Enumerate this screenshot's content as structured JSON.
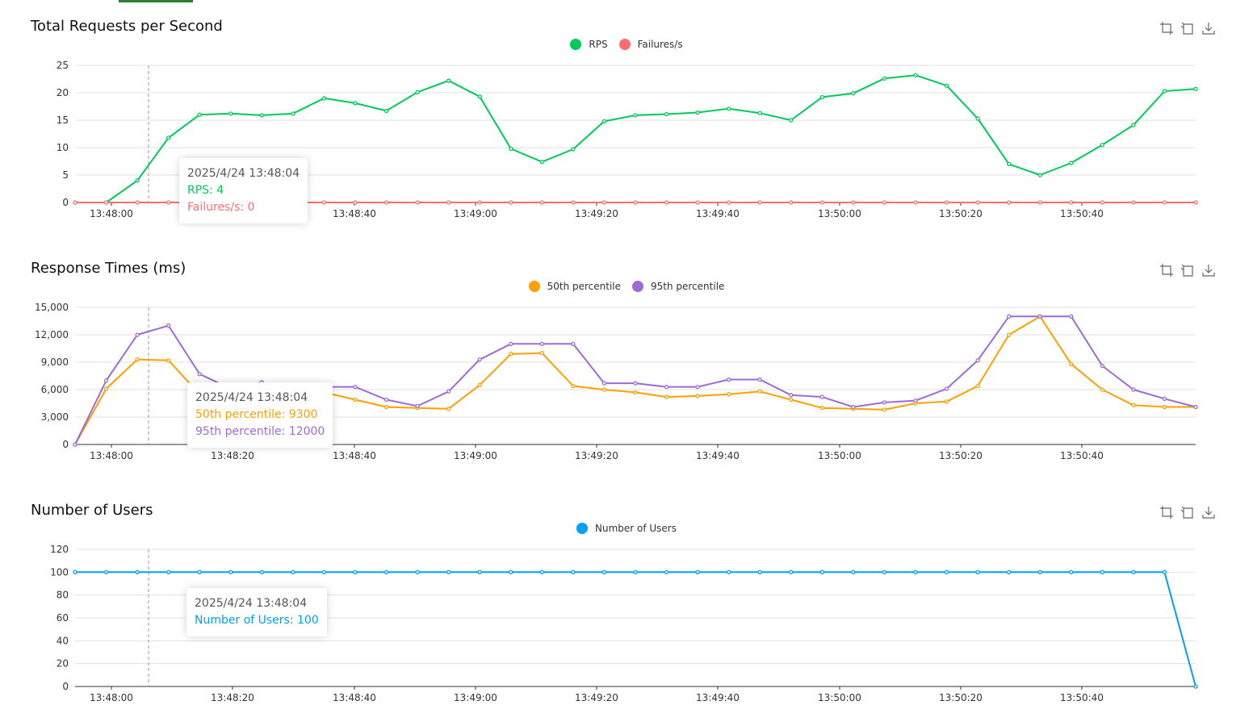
{
  "charts": [
    {
      "title": "Total Requests per Second",
      "ylim": [
        0,
        25
      ],
      "yticks": [
        "0",
        "5",
        "10",
        "15",
        "20",
        "25"
      ],
      "series": [
        {
          "name": "RPS",
          "color": "#00ca5a",
          "values": [
            0,
            0,
            4,
            11.8,
            16,
            16.2,
            15.9,
            16.2,
            19,
            18.1,
            16.7,
            20.1,
            22.2,
            19.3,
            9.8,
            7.4,
            9.7,
            14.8,
            15.9,
            16.1,
            16.4,
            17.1,
            16.3,
            15,
            19.2,
            19.9,
            22.6,
            23.2,
            21.3,
            15.3,
            7,
            5,
            7.2,
            10.5,
            14.1,
            20.3,
            20.7
          ]
        },
        {
          "name": "Failures/s",
          "color": "#ff6d6d",
          "values": [
            0,
            0,
            0,
            0,
            0,
            0,
            0,
            0,
            0,
            0,
            0,
            0,
            0,
            0,
            0,
            0,
            0,
            0,
            0,
            0,
            0,
            0,
            0,
            0,
            0,
            0,
            0,
            0,
            0,
            0,
            0,
            0,
            0,
            0,
            0,
            0,
            0
          ]
        }
      ],
      "tooltip": {
        "time": "2025/4/24 13:48:04",
        "lines": [
          "RPS: 4",
          "Failures/s: 0"
        ]
      }
    },
    {
      "title": "Response Times (ms)",
      "ylim": [
        0,
        15000
      ],
      "yticks": [
        "0",
        "3,000",
        "6,000",
        "9,000",
        "12,000",
        "15,000"
      ],
      "series": [
        {
          "name": "50th percentile",
          "color": "#ff9f00",
          "values": [
            0,
            6100,
            9300,
            9200,
            5500,
            5200,
            5400,
            4300,
            5700,
            4900,
            4100,
            4000,
            3900,
            6500,
            9900,
            10000,
            6400,
            6000,
            5700,
            5200,
            5300,
            5500,
            5800,
            4900,
            4000,
            3900,
            3800,
            4500,
            4700,
            6400,
            12000,
            14000,
            8800,
            6000,
            4300,
            4100,
            4100
          ]
        },
        {
          "name": "95th percentile",
          "color": "#9e6ad8",
          "values": [
            0,
            7000,
            12000,
            13000,
            7700,
            6100,
            6800,
            5400,
            6300,
            6300,
            4900,
            4200,
            5800,
            9300,
            11000,
            11000,
            11000,
            6700,
            6700,
            6300,
            6300,
            7100,
            7100,
            5400,
            5200,
            4100,
            4600,
            4800,
            6100,
            9200,
            14000,
            14000,
            14000,
            8600,
            6000,
            5000,
            4100
          ]
        }
      ],
      "tooltip": {
        "time": "2025/4/24 13:48:04",
        "lines": [
          "50th percentile: 9300",
          "95th percentile: 12000"
        ]
      }
    },
    {
      "title": "Number of Users",
      "ylim": [
        0,
        120
      ],
      "yticks": [
        "0",
        "20",
        "40",
        "60",
        "80",
        "100",
        "120"
      ],
      "series": [
        {
          "name": "Number of Users",
          "color": "#00a0f5",
          "values": [
            100,
            100,
            100,
            100,
            100,
            100,
            100,
            100,
            100,
            100,
            100,
            100,
            100,
            100,
            100,
            100,
            100,
            100,
            100,
            100,
            100,
            100,
            100,
            100,
            100,
            100,
            100,
            100,
            100,
            100,
            100,
            100,
            100,
            100,
            100,
            100,
            0
          ]
        }
      ],
      "tooltip": {
        "time": "2025/4/24 13:48:04",
        "lines": [
          "Number of Users: 100"
        ]
      }
    }
  ],
  "xtick_labels": [
    "13:48:00",
    "13:48:20",
    "13:48:40",
    "13:49:00",
    "13:49:20",
    "13:49:40",
    "13:50:00",
    "13:50:20",
    "13:50:40"
  ],
  "chart_data": [
    {
      "type": "line",
      "title": "Total Requests per Second",
      "x_tick_labels": [
        "13:48:00",
        "13:48:20",
        "13:48:40",
        "13:49:00",
        "13:49:20",
        "13:49:40",
        "13:50:00",
        "13:50:20",
        "13:50:40"
      ],
      "ylim": [
        0,
        25
      ],
      "grid": true,
      "legend": "top-center",
      "series": [
        {
          "name": "RPS",
          "values": [
            0,
            0,
            4,
            11.8,
            16,
            16.2,
            15.9,
            16.2,
            19,
            18.1,
            16.7,
            20.1,
            22.2,
            19.3,
            9.8,
            7.4,
            9.7,
            14.8,
            15.9,
            16.1,
            16.4,
            17.1,
            16.3,
            15,
            19.2,
            19.9,
            22.6,
            23.2,
            21.3,
            15.3,
            7,
            5,
            7.2,
            10.5,
            14.1,
            20.3,
            20.7
          ]
        },
        {
          "name": "Failures/s",
          "values": [
            0,
            0,
            0,
            0,
            0,
            0,
            0,
            0,
            0,
            0,
            0,
            0,
            0,
            0,
            0,
            0,
            0,
            0,
            0,
            0,
            0,
            0,
            0,
            0,
            0,
            0,
            0,
            0,
            0,
            0,
            0,
            0,
            0,
            0,
            0,
            0,
            0
          ]
        }
      ]
    },
    {
      "type": "line",
      "title": "Response Times (ms)",
      "x_tick_labels": [
        "13:48:00",
        "13:48:20",
        "13:48:40",
        "13:49:00",
        "13:49:20",
        "13:49:40",
        "13:50:00",
        "13:50:20",
        "13:50:40"
      ],
      "ylim": [
        0,
        15000
      ],
      "grid": true,
      "legend": "top-center",
      "series": [
        {
          "name": "50th percentile",
          "values": [
            0,
            6100,
            9300,
            9200,
            5500,
            5200,
            5400,
            4300,
            5700,
            4900,
            4100,
            4000,
            3900,
            6500,
            9900,
            10000,
            6400,
            6000,
            5700,
            5200,
            5300,
            5500,
            5800,
            4900,
            4000,
            3900,
            3800,
            4500,
            4700,
            6400,
            12000,
            14000,
            8800,
            6000,
            4300,
            4100,
            4100
          ]
        },
        {
          "name": "95th percentile",
          "values": [
            0,
            7000,
            12000,
            13000,
            7700,
            6100,
            6800,
            5400,
            6300,
            6300,
            4900,
            4200,
            5800,
            9300,
            11000,
            11000,
            11000,
            6700,
            6700,
            6300,
            6300,
            7100,
            7100,
            5400,
            5200,
            4100,
            4600,
            4800,
            6100,
            9200,
            14000,
            14000,
            14000,
            8600,
            6000,
            5000,
            4100
          ]
        }
      ]
    },
    {
      "type": "line",
      "title": "Number of Users",
      "x_tick_labels": [
        "13:48:00",
        "13:48:20",
        "13:48:40",
        "13:49:00",
        "13:49:20",
        "13:49:40",
        "13:50:00",
        "13:50:20",
        "13:50:40"
      ],
      "ylim": [
        0,
        120
      ],
      "grid": true,
      "legend": "top-center",
      "series": [
        {
          "name": "Number of Users",
          "values": [
            100,
            100,
            100,
            100,
            100,
            100,
            100,
            100,
            100,
            100,
            100,
            100,
            100,
            100,
            100,
            100,
            100,
            100,
            100,
            100,
            100,
            100,
            100,
            100,
            100,
            100,
            100,
            100,
            100,
            100,
            100,
            100,
            100,
            100,
            100,
            100,
            0
          ]
        }
      ]
    }
  ],
  "toolbox_icons": [
    "zoom-icon",
    "restore-icon",
    "download-icon"
  ]
}
